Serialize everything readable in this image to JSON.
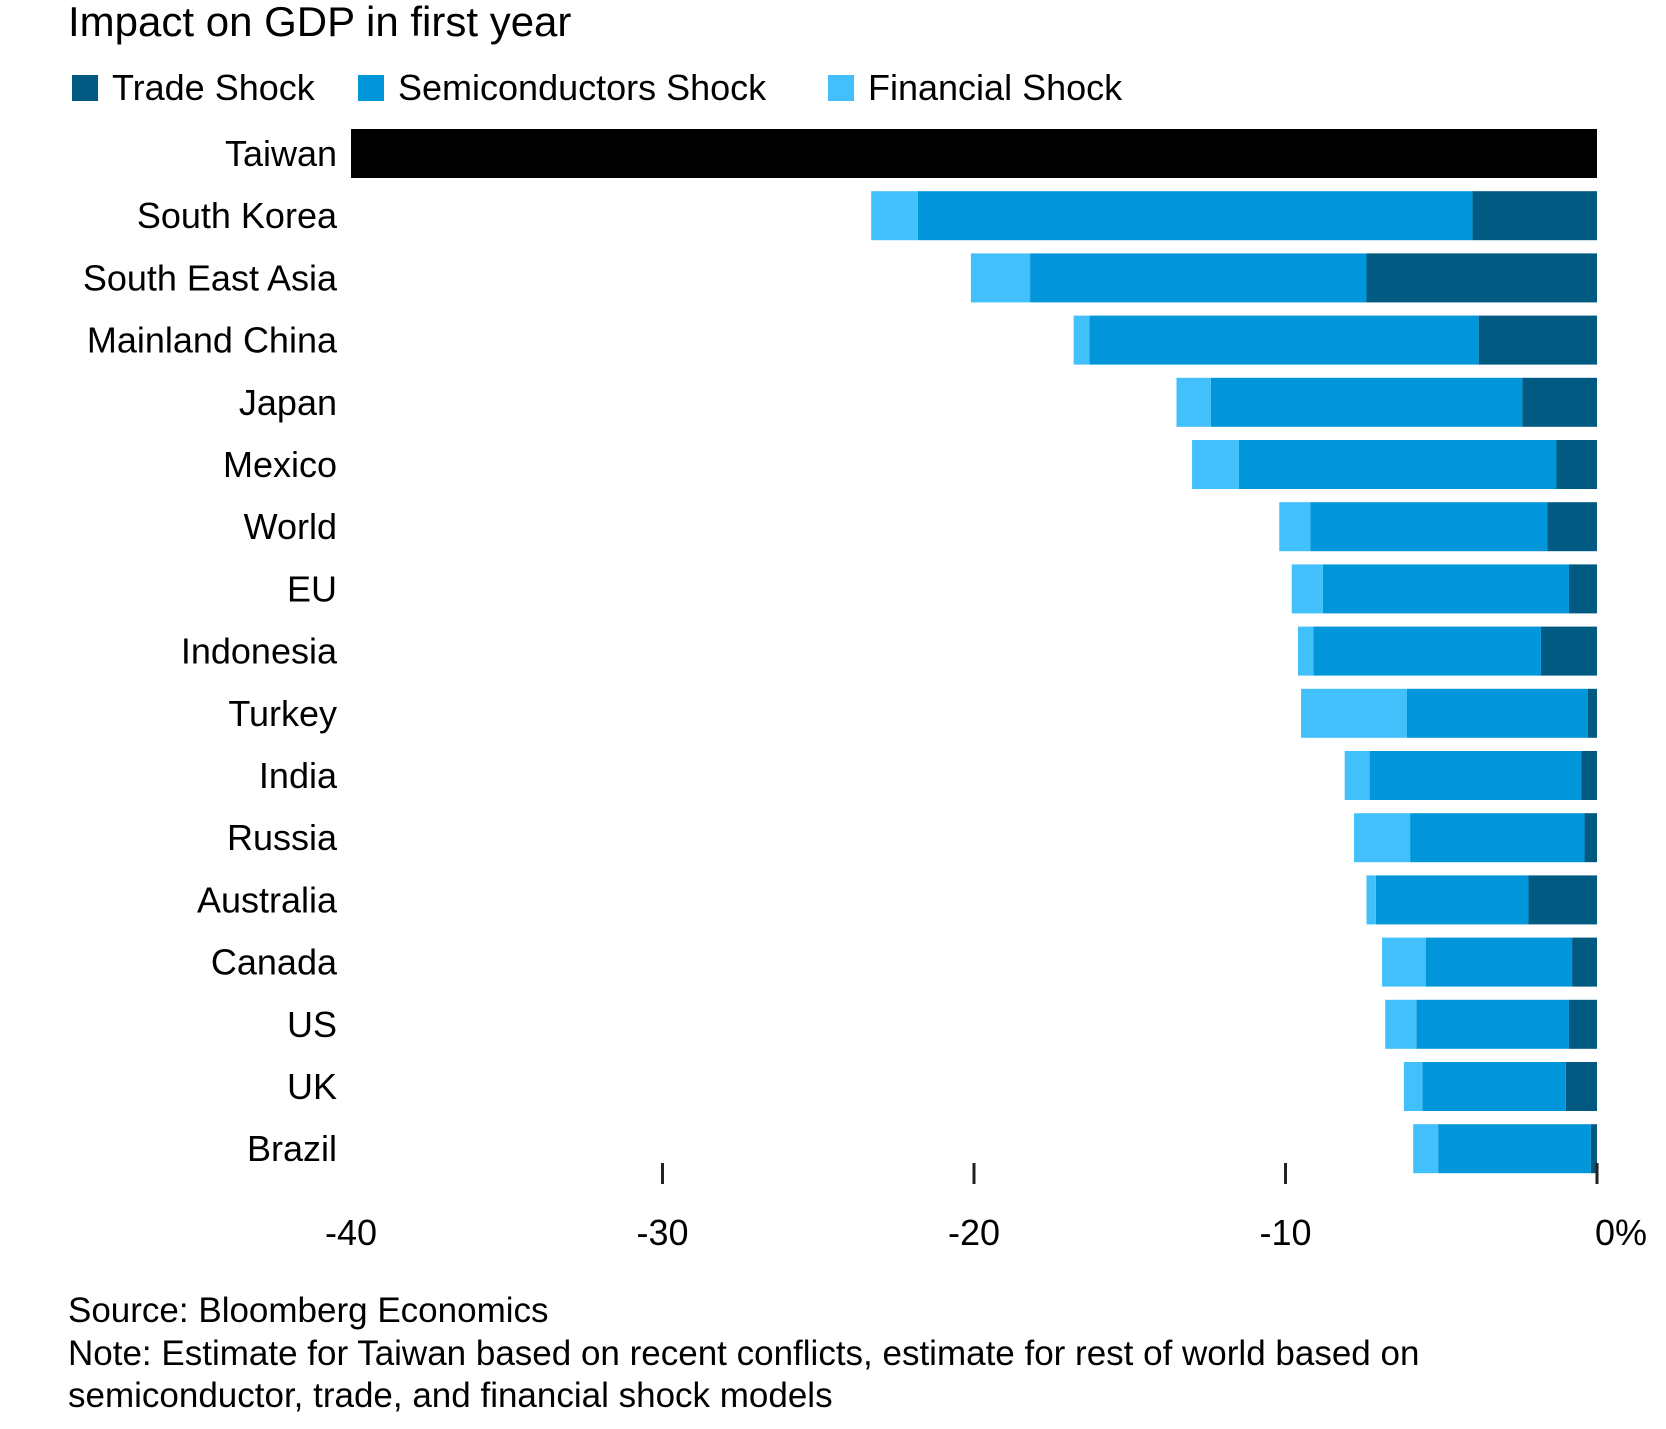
{
  "chart_data": {
    "type": "bar",
    "orientation": "horizontal",
    "stacked": true,
    "title": "Impact on GDP in first year",
    "xlabel": "",
    "ylabel": "",
    "xlim": [
      -40,
      0
    ],
    "x_ticks": [
      -40,
      -30,
      -20,
      -10,
      0
    ],
    "x_tick_labels": [
      "-40",
      "-30",
      "-20",
      "-10",
      "0%"
    ],
    "legend_position": "top-left",
    "categories": [
      "Taiwan",
      "South Korea",
      "South East Asia",
      "Mainland China",
      "Japan",
      "Mexico",
      "World",
      "EU",
      "Indonesia",
      "Turkey",
      "India",
      "Russia",
      "Australia",
      "Canada",
      "US",
      "UK",
      "Brazil"
    ],
    "series": [
      {
        "name": "Trade Shock",
        "color": "#005a82",
        "values": [
          null,
          -4.0,
          -7.4,
          -3.8,
          -2.4,
          -1.3,
          -1.6,
          -0.9,
          -1.8,
          -0.3,
          -0.5,
          -0.4,
          -2.2,
          -0.8,
          -0.9,
          -1.0,
          -0.2
        ]
      },
      {
        "name": "Semiconductors Shock",
        "color": "#0096d9",
        "values": [
          null,
          -17.8,
          -10.8,
          -12.5,
          -10.0,
          -10.2,
          -7.6,
          -7.9,
          -7.3,
          -5.8,
          -6.8,
          -5.6,
          -4.9,
          -4.7,
          -4.9,
          -4.6,
          -4.9
        ]
      },
      {
        "name": "Financial Shock",
        "color": "#41c0fb",
        "values": [
          null,
          -1.5,
          -1.9,
          -0.5,
          -1.1,
          -1.5,
          -1.0,
          -1.0,
          -0.5,
          -3.4,
          -0.8,
          -1.8,
          -0.3,
          -1.4,
          -1.0,
          -0.6,
          -0.8
        ]
      }
    ],
    "taiwan_total": {
      "value": -40,
      "color": "#000000"
    }
  },
  "footer": {
    "source": "Source: Bloomberg Economics",
    "note_line1": "Note: Estimate for Taiwan based on recent conflicts, estimate for rest of world based on",
    "note_line2": "semiconductor, trade, and financial shock models"
  }
}
